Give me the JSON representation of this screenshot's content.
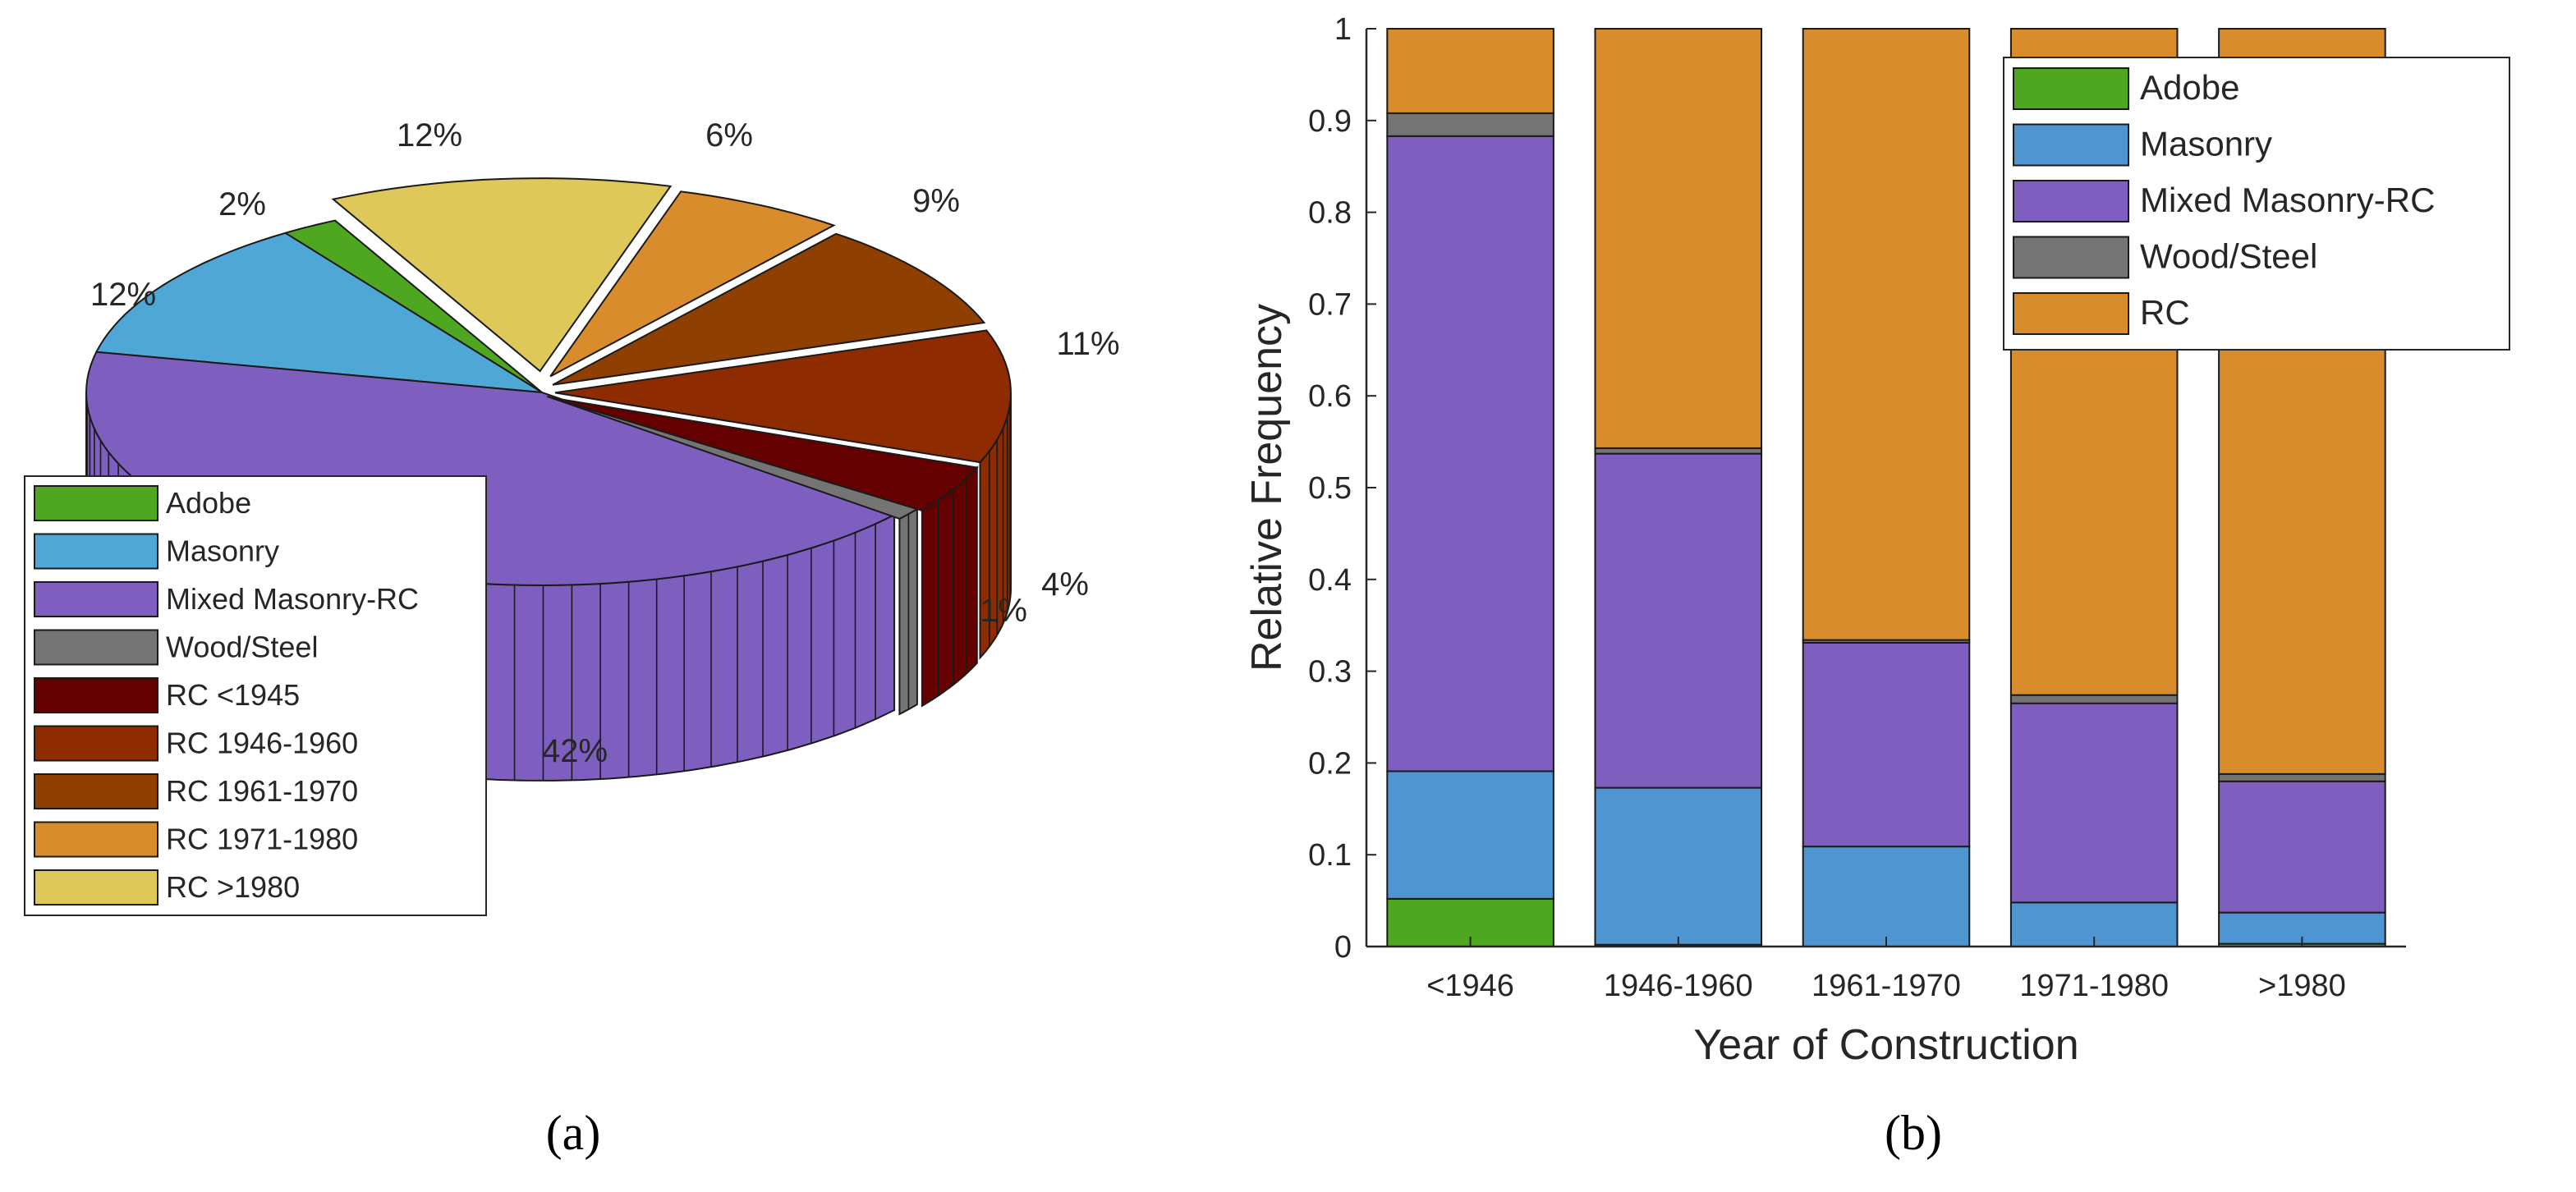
{
  "colors": {
    "adobe": "#4fa721",
    "masonry": "#4f95d2",
    "mixed": "#7e5fc0",
    "wood": "#747474",
    "rc": "#d98c2b",
    "rc_pre1945": "#640000",
    "rc_1946_1960": "#8e2b00",
    "rc_1961_1970": "#8f4000",
    "rc_1971_1980": "#d98c2b",
    "rc_post1980": "#dfc85a"
  },
  "panel_labels": {
    "a": "(a)",
    "b": "(b)"
  },
  "chart_data": [
    {
      "type": "pie",
      "title": "",
      "slices": [
        {
          "name": "Adobe",
          "value": 2,
          "label": "2%",
          "color": "#4fa721"
        },
        {
          "name": "Masonry",
          "value": 12,
          "label": "12%",
          "color": "#4fa7d5"
        },
        {
          "name": "Mixed Masonry-RC",
          "value": 42,
          "label": "42%",
          "color": "#7e5fc0"
        },
        {
          "name": "Wood/Steel",
          "value": 1,
          "label": "1%",
          "color": "#747474"
        },
        {
          "name": "RC <1945",
          "value": 4,
          "label": "4%",
          "color": "#640000"
        },
        {
          "name": "RC 1946-1960",
          "value": 11,
          "label": "11%",
          "color": "#8e2b00"
        },
        {
          "name": "RC 1961-1970",
          "value": 9,
          "label": "9%",
          "color": "#8f4000"
        },
        {
          "name": "RC 1971-1980",
          "value": 6,
          "label": "6%",
          "color": "#d98c2b"
        },
        {
          "name": "RC >1980",
          "value": 12,
          "label": "12%",
          "color": "#dfc85a"
        }
      ],
      "legend": [
        "Adobe",
        "Masonry",
        "Mixed Masonry-RC",
        "Wood/Steel",
        "RC <1945",
        "RC 1946-1960",
        "RC 1961-1970",
        "RC 1971-1980",
        "RC >1980"
      ],
      "legend_position": "bottom-left"
    },
    {
      "type": "bar",
      "stacked": true,
      "title": "",
      "xlabel": "Year of Construction",
      "ylabel": "Relative Frequency",
      "ylim": [
        0,
        1
      ],
      "yticks": [
        "0",
        "0.1",
        "0.2",
        "0.3",
        "0.4",
        "0.5",
        "0.6",
        "0.7",
        "0.8",
        "0.9",
        "1"
      ],
      "categories": [
        "<1946",
        "1946-1960",
        "1961-1970",
        "1971-1980",
        ">1980"
      ],
      "series": [
        {
          "name": "Adobe",
          "color": "#4fa721",
          "values": [
            0.052,
            0.002,
            0.0,
            0.0,
            0.003
          ]
        },
        {
          "name": "Masonry",
          "color": "#4f95d2",
          "values": [
            0.139,
            0.171,
            0.109,
            0.048,
            0.034
          ]
        },
        {
          "name": "Mixed Masonry-RC",
          "color": "#7e5fc0",
          "values": [
            0.692,
            0.364,
            0.222,
            0.217,
            0.143
          ]
        },
        {
          "name": "Wood/Steel",
          "color": "#747474",
          "values": [
            0.025,
            0.006,
            0.003,
            0.009,
            0.008
          ]
        },
        {
          "name": "RC",
          "color": "#d98c2b",
          "values": [
            0.092,
            0.457,
            0.666,
            0.726,
            0.812
          ]
        }
      ],
      "legend": [
        "Adobe",
        "Masonry",
        "Mixed Masonry-RC",
        "Wood/Steel",
        "RC"
      ],
      "legend_position": "top-right"
    }
  ]
}
